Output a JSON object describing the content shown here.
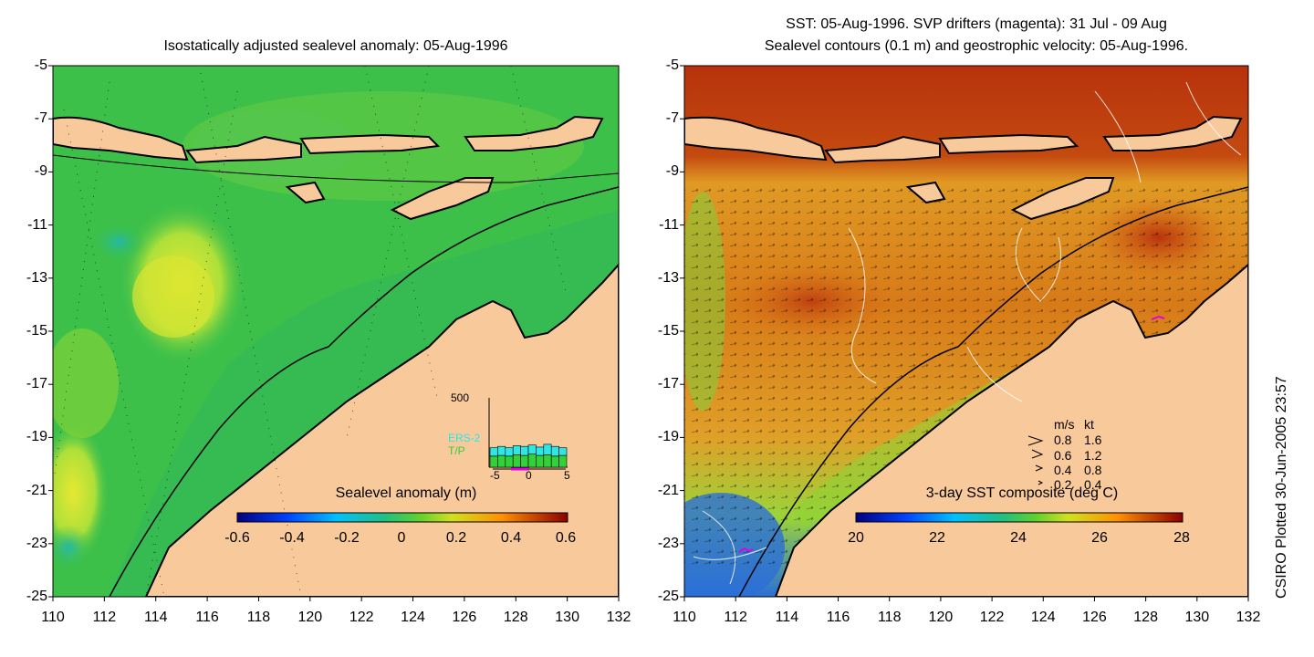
{
  "colors": {
    "land": "#f8c99b",
    "coast": "#000000",
    "anomaly_sea": "#3cc04a",
    "anomaly_light": "#7ad53a",
    "anomaly_yellow": "#c9e830",
    "anomaly_cyan": "#2ab99a",
    "sst_hot": "#c0390c",
    "sst_warm": "#d76a14",
    "sst_mid": "#e39a26",
    "sst_green": "#59c62d",
    "sst_blue": "#1b5fd0",
    "inset_cyan": "#2ee6e6",
    "inset_green": "#34d039",
    "drifter_magenta": "#e000e0",
    "sst_contour": "#ffffff"
  },
  "left_panel": {
    "title": "Isostatically adjusted sealevel anomaly: 05-Aug-1996",
    "colorbar": {
      "title": "Sealevel anomaly (m)",
      "ticks": [
        "-0.6",
        "-0.4",
        "-0.2",
        "0",
        "0.2",
        "0.4",
        "0.6"
      ],
      "range": [
        -0.6,
        0.6
      ]
    },
    "inset": {
      "ymax_label": "500",
      "series": [
        "ERS-2",
        "T/P"
      ],
      "xticks": [
        "-5",
        "0",
        "5"
      ],
      "ers2_values": [
        140,
        150,
        140,
        155,
        150,
        160,
        145,
        165,
        150,
        140
      ],
      "tp_values": [
        80,
        85,
        80,
        90,
        85,
        95,
        85,
        90,
        80,
        85
      ]
    }
  },
  "right_panel": {
    "title_line1": "SST: 05-Aug-1996. SVP drifters (magenta): 31 Jul - 09 Aug",
    "title_line2": "Sealevel contours (0.1 m) and geostrophic velocity: 05-Aug-1996.",
    "colorbar": {
      "title": "3-day SST composite (deg C)",
      "ticks": [
        "20",
        "22",
        "24",
        "26",
        "28"
      ],
      "range": [
        20,
        28
      ]
    },
    "velocity_legend": {
      "header_ms": "m/s",
      "header_kt": "kt",
      "rows": [
        {
          "ms": "0.8",
          "kt": "1.6"
        },
        {
          "ms": "0.6",
          "kt": "1.2"
        },
        {
          "ms": "0.4",
          "kt": "0.8"
        },
        {
          "ms": "0.2",
          "kt": "0.4"
        }
      ]
    }
  },
  "axes": {
    "xticks": [
      "110",
      "112",
      "114",
      "116",
      "118",
      "120",
      "122",
      "124",
      "126",
      "128",
      "130",
      "132"
    ],
    "yticks": [
      "-5",
      "-7",
      "-9",
      "-11",
      "-13",
      "-15",
      "-17",
      "-19",
      "-21",
      "-23",
      "-25"
    ],
    "xlim": [
      110,
      132
    ],
    "ylim": [
      -25,
      -5
    ]
  },
  "stamp": "CSIRO Plotted 30-Jun-2005 23:57"
}
